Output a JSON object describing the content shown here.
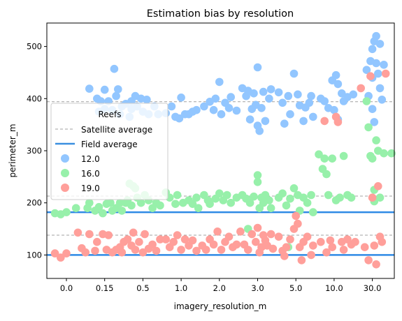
{
  "chart_data": {
    "type": "scatter",
    "title": "Estimation bias by resolution",
    "xlabel": "imagery_resolution_m",
    "ylabel": "perimeter_m",
    "categories": [
      "0.0",
      "0.15",
      "0.5",
      "1.0",
      "2.0",
      "3.0",
      "5.0",
      "10.0",
      "30.0"
    ],
    "yticks": [
      100,
      200,
      300,
      400,
      500
    ],
    "ylim": [
      55,
      545
    ],
    "legend": {
      "title": "Reefs",
      "placement": "upper-left",
      "satellite_label": "Satellite average",
      "field_label": "Field average"
    },
    "satellite_average": [
      138,
      213,
      394
    ],
    "field_average": [
      100,
      182
    ],
    "series": [
      {
        "name": "12.0",
        "color": "#92c6ff",
        "values": [
          [
            0.6,
            419
          ],
          [
            0.8,
            400
          ],
          [
            1.0,
            417
          ],
          [
            1.25,
            457
          ],
          [
            1.1,
            395
          ],
          [
            1.35,
            418
          ],
          [
            1.45,
            385
          ],
          [
            1.3,
            405
          ],
          [
            0.9,
            395
          ],
          [
            0.85,
            375
          ],
          [
            1.2,
            378
          ],
          [
            1.0,
            380
          ],
          [
            1.4,
            370
          ],
          [
            1.55,
            390
          ],
          [
            1.7,
            395
          ],
          [
            1.8,
            405
          ],
          [
            1.95,
            400
          ],
          [
            2.1,
            398
          ],
          [
            1.7,
            380
          ],
          [
            1.85,
            385
          ],
          [
            2.0,
            375
          ],
          [
            2.15,
            370
          ],
          [
            1.65,
            365
          ],
          [
            2.3,
            385
          ],
          [
            2.4,
            370
          ],
          [
            2.6,
            372
          ],
          [
            2.75,
            385
          ],
          [
            2.85,
            365
          ],
          [
            3.0,
            402
          ],
          [
            3.1,
            370
          ],
          [
            3.2,
            370
          ],
          [
            3.3,
            375
          ],
          [
            3.4,
            378
          ],
          [
            2.95,
            362
          ],
          [
            3.6,
            385
          ],
          [
            3.75,
            394
          ],
          [
            3.85,
            378
          ],
          [
            3.9,
            400
          ],
          [
            4.0,
            432
          ],
          [
            4.05,
            370
          ],
          [
            4.15,
            392
          ],
          [
            4.25,
            382
          ],
          [
            4.3,
            403
          ],
          [
            4.45,
            377
          ],
          [
            4.6,
            420
          ],
          [
            4.7,
            405
          ],
          [
            4.75,
            415
          ],
          [
            4.8,
            360
          ],
          [
            4.85,
            380
          ],
          [
            4.9,
            410
          ],
          [
            4.95,
            388
          ],
          [
            5.0,
            460
          ],
          [
            5.0,
            348
          ],
          [
            5.05,
            338
          ],
          [
            5.1,
            382
          ],
          [
            5.15,
            413
          ],
          [
            5.2,
            357
          ],
          [
            5.3,
            400
          ],
          [
            5.35,
            418
          ],
          [
            5.55,
            412
          ],
          [
            5.65,
            392
          ],
          [
            5.7,
            352
          ],
          [
            5.8,
            405
          ],
          [
            5.85,
            370
          ],
          [
            5.95,
            448
          ],
          [
            6.05,
            408
          ],
          [
            6.1,
            387
          ],
          [
            6.2,
            357
          ],
          [
            6.25,
            383
          ],
          [
            6.35,
            392
          ],
          [
            6.4,
            405
          ],
          [
            6.45,
            365
          ],
          [
            6.65,
            400
          ],
          [
            6.75,
            395
          ],
          [
            6.85,
            382
          ],
          [
            6.95,
            435
          ],
          [
            7.05,
            445
          ],
          [
            7.0,
            378
          ],
          [
            7.1,
            428
          ],
          [
            7.2,
            410
          ],
          [
            7.25,
            395
          ],
          [
            7.1,
            360
          ],
          [
            7.35,
            403
          ],
          [
            7.5,
            408
          ],
          [
            7.85,
            455
          ],
          [
            7.9,
            405
          ],
          [
            7.95,
            472
          ],
          [
            8.0,
            495
          ],
          [
            8.05,
            510
          ],
          [
            8.0,
            440
          ],
          [
            8.1,
            520
          ],
          [
            8.1,
            468
          ],
          [
            8.15,
            448
          ],
          [
            8.2,
            505
          ],
          [
            8.2,
            420
          ],
          [
            8.25,
            398
          ],
          [
            8.3,
            465
          ],
          [
            8.05,
            355
          ],
          [
            8.0,
            380
          ]
        ]
      },
      {
        "name": "16.0",
        "color": "#97f0aa",
        "values": [
          [
            -0.3,
            180
          ],
          [
            -0.15,
            178
          ],
          [
            0.0,
            182
          ],
          [
            0.25,
            190
          ],
          [
            0.55,
            190
          ],
          [
            0.6,
            200
          ],
          [
            0.75,
            185
          ],
          [
            0.85,
            192
          ],
          [
            0.95,
            180
          ],
          [
            1.05,
            198
          ],
          [
            1.15,
            200
          ],
          [
            1.2,
            185
          ],
          [
            1.3,
            190
          ],
          [
            1.4,
            200
          ],
          [
            1.45,
            185
          ],
          [
            1.55,
            200
          ],
          [
            1.65,
            237
          ],
          [
            1.75,
            232
          ],
          [
            1.8,
            228
          ],
          [
            1.6,
            205
          ],
          [
            1.85,
            210
          ],
          [
            1.7,
            195
          ],
          [
            1.95,
            200
          ],
          [
            2.05,
            215
          ],
          [
            2.15,
            205
          ],
          [
            2.25,
            190
          ],
          [
            2.35,
            200
          ],
          [
            2.45,
            195
          ],
          [
            2.6,
            220
          ],
          [
            2.7,
            210
          ],
          [
            2.85,
            198
          ],
          [
            2.9,
            215
          ],
          [
            3.05,
            200
          ],
          [
            3.2,
            205
          ],
          [
            3.3,
            198
          ],
          [
            3.4,
            210
          ],
          [
            3.45,
            190
          ],
          [
            3.6,
            215
          ],
          [
            3.7,
            205
          ],
          [
            3.75,
            198
          ],
          [
            3.9,
            208
          ],
          [
            4.0,
            218
          ],
          [
            4.1,
            205
          ],
          [
            4.2,
            215
          ],
          [
            4.3,
            200
          ],
          [
            4.45,
            210
          ],
          [
            4.6,
            215
          ],
          [
            4.7,
            208
          ],
          [
            4.8,
            200
          ],
          [
            4.9,
            212
          ],
          [
            5.0,
            253
          ],
          [
            5.0,
            240
          ],
          [
            5.05,
            190
          ],
          [
            5.1,
            210
          ],
          [
            5.15,
            200
          ],
          [
            5.2,
            215
          ],
          [
            5.3,
            205
          ],
          [
            5.35,
            190
          ],
          [
            4.75,
            150
          ],
          [
            5.55,
            210
          ],
          [
            5.65,
            218
          ],
          [
            5.75,
            195
          ],
          [
            5.85,
            208
          ],
          [
            5.95,
            228
          ],
          [
            6.05,
            215
          ],
          [
            6.1,
            185
          ],
          [
            6.2,
            210
          ],
          [
            6.3,
            200
          ],
          [
            6.4,
            215
          ],
          [
            6.45,
            182
          ],
          [
            5.8,
            115
          ],
          [
            6.6,
            293
          ],
          [
            6.7,
            265
          ],
          [
            6.75,
            285
          ],
          [
            6.8,
            255
          ],
          [
            6.85,
            215
          ],
          [
            6.95,
            285
          ],
          [
            7.05,
            205
          ],
          [
            7.15,
            210
          ],
          [
            7.25,
            290
          ],
          [
            7.35,
            215
          ],
          [
            7.45,
            210
          ],
          [
            7.85,
            395
          ],
          [
            7.9,
            345
          ],
          [
            7.95,
            290
          ],
          [
            8.0,
            285
          ],
          [
            8.05,
            225
          ],
          [
            8.1,
            320
          ],
          [
            8.15,
            300
          ],
          [
            8.2,
            210
          ],
          [
            8.3,
            295
          ],
          [
            8.5,
            295
          ],
          [
            8.05,
            203
          ]
        ]
      },
      {
        "name": "19.0",
        "color": "#ff9f9a",
        "values": [
          [
            -0.3,
            103
          ],
          [
            -0.15,
            95
          ],
          [
            0.0,
            103
          ],
          [
            0.3,
            143
          ],
          [
            0.4,
            113
          ],
          [
            0.5,
            105
          ],
          [
            0.6,
            140
          ],
          [
            0.75,
            108
          ],
          [
            0.8,
            125
          ],
          [
            0.95,
            140
          ],
          [
            1.05,
            110
          ],
          [
            1.1,
            138
          ],
          [
            1.2,
            105
          ],
          [
            1.3,
            110
          ],
          [
            1.4,
            115
          ],
          [
            1.45,
            105
          ],
          [
            1.5,
            125
          ],
          [
            1.6,
            130
          ],
          [
            1.7,
            118
          ],
          [
            1.75,
            143
          ],
          [
            1.8,
            110
          ],
          [
            1.9,
            125
          ],
          [
            2.0,
            105
          ],
          [
            2.05,
            140
          ],
          [
            2.15,
            112
          ],
          [
            2.25,
            120
          ],
          [
            2.35,
            108
          ],
          [
            2.45,
            130
          ],
          [
            2.6,
            130
          ],
          [
            2.7,
            115
          ],
          [
            2.8,
            125
          ],
          [
            2.9,
            138
          ],
          [
            3.0,
            110
          ],
          [
            3.1,
            130
          ],
          [
            3.2,
            118
          ],
          [
            3.3,
            128
          ],
          [
            3.4,
            108
          ],
          [
            3.55,
            118
          ],
          [
            3.65,
            110
          ],
          [
            3.75,
            130
          ],
          [
            3.85,
            120
          ],
          [
            3.95,
            145
          ],
          [
            4.05,
            110
          ],
          [
            4.15,
            125
          ],
          [
            4.25,
            135
          ],
          [
            4.35,
            115
          ],
          [
            4.45,
            120
          ],
          [
            4.55,
            145
          ],
          [
            4.65,
            120
          ],
          [
            4.75,
            110
          ],
          [
            4.85,
            140
          ],
          [
            4.95,
            125
          ],
          [
            5.0,
            152
          ],
          [
            5.05,
            105
          ],
          [
            5.1,
            115
          ],
          [
            5.15,
            138
          ],
          [
            5.2,
            128
          ],
          [
            5.25,
            118
          ],
          [
            5.35,
            140
          ],
          [
            5.4,
            112
          ],
          [
            5.55,
            135
          ],
          [
            5.65,
            108
          ],
          [
            5.7,
            98
          ],
          [
            5.75,
            115
          ],
          [
            5.85,
            130
          ],
          [
            5.95,
            150
          ],
          [
            6.0,
            175
          ],
          [
            6.05,
            160
          ],
          [
            6.1,
            115
          ],
          [
            6.15,
            90
          ],
          [
            6.2,
            125
          ],
          [
            6.3,
            135
          ],
          [
            6.4,
            100
          ],
          [
            6.45,
            118
          ],
          [
            6.65,
            125
          ],
          [
            6.75,
            357
          ],
          [
            6.8,
            105
          ],
          [
            6.9,
            128
          ],
          [
            6.95,
            115
          ],
          [
            7.05,
            365
          ],
          [
            7.1,
            355
          ],
          [
            7.2,
            125
          ],
          [
            7.25,
            110
          ],
          [
            7.35,
            130
          ],
          [
            7.45,
            120
          ],
          [
            7.55,
            125
          ],
          [
            7.7,
            420
          ],
          [
            7.8,
            115
          ],
          [
            7.9,
            90
          ],
          [
            7.95,
            443
          ],
          [
            8.0,
            210
          ],
          [
            8.05,
            118
          ],
          [
            8.1,
            82
          ],
          [
            8.15,
            232
          ],
          [
            8.2,
            135
          ],
          [
            8.35,
            448
          ],
          [
            8.25,
            125
          ]
        ]
      }
    ]
  }
}
